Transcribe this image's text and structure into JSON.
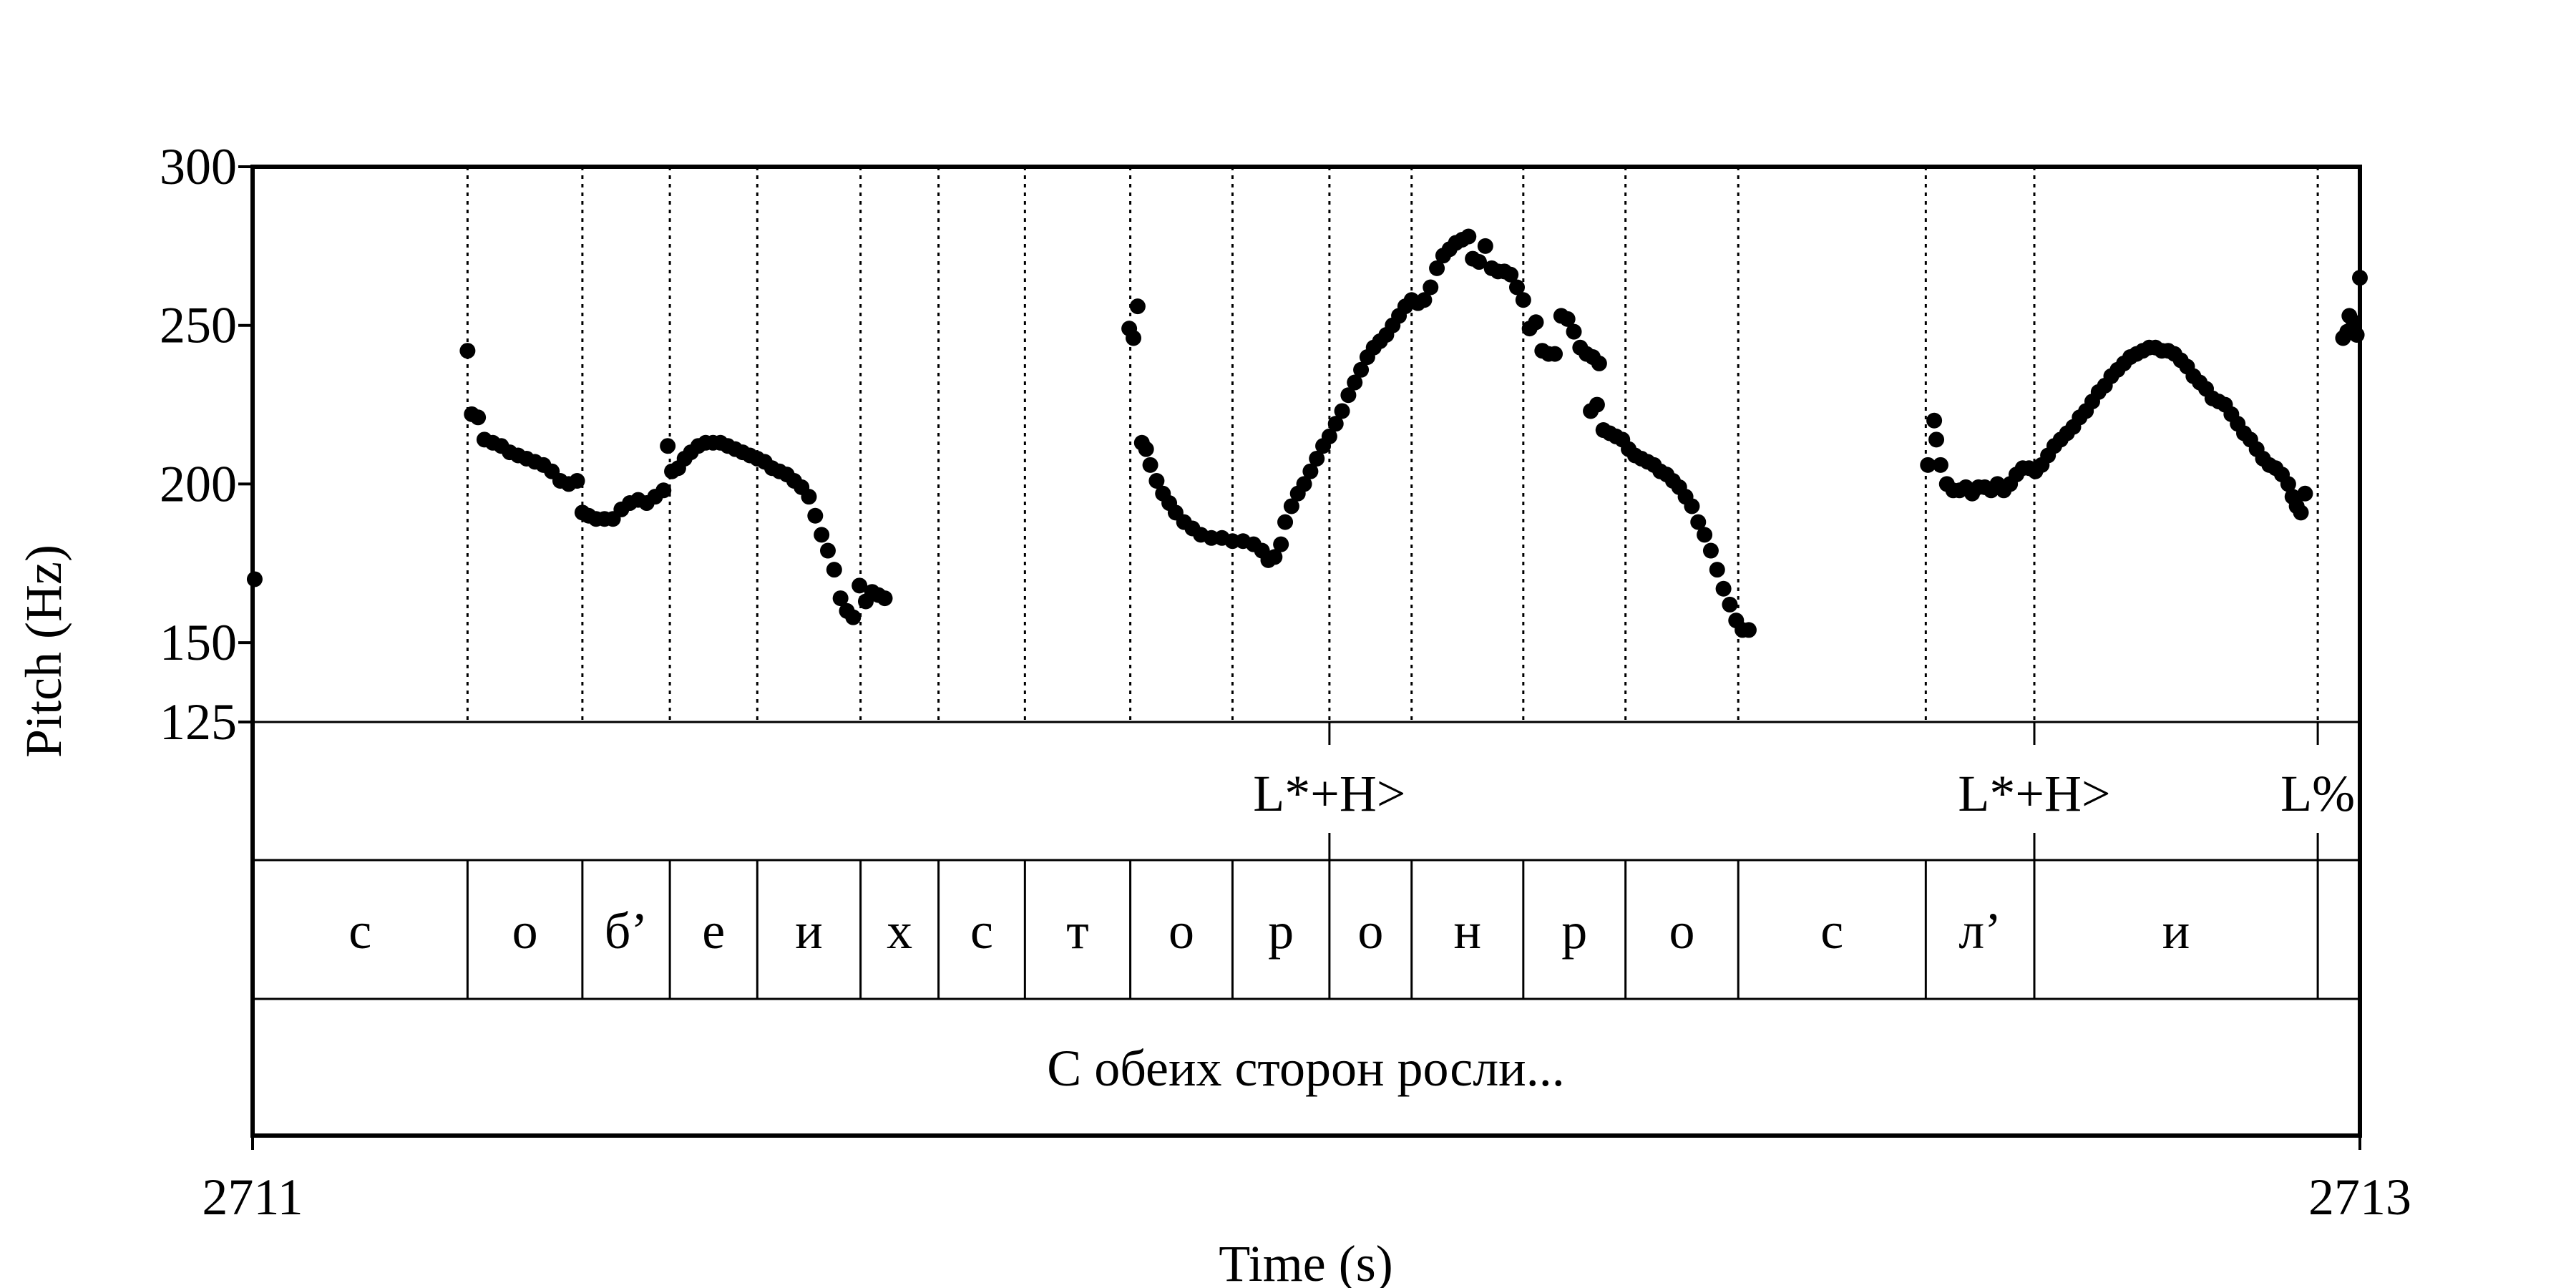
{
  "chart_data": {
    "type": "scatter",
    "xlabel": "Time (s)",
    "ylabel": "Pitch (Hz)",
    "xlim": [
      2711,
      2713
    ],
    "ylim": [
      125,
      300
    ],
    "x_ticks": [
      "2711",
      "2713"
    ],
    "y_ticks": [
      {
        "value": 300,
        "label": "300"
      },
      {
        "value": 250,
        "label": "250"
      },
      {
        "value": 200,
        "label": "200"
      },
      {
        "value": 150,
        "label": "150"
      },
      {
        "value": 125,
        "label": "125"
      }
    ],
    "point_color": "#000000",
    "boundaries": [
      2711.204,
      2711.313,
      2711.396,
      2711.479,
      2711.577,
      2711.651,
      2711.733,
      2711.833,
      2711.93,
      2712.022,
      2712.1,
      2712.206,
      2712.303,
      2712.41,
      2712.588,
      2712.691,
      2712.96
    ],
    "tone_tier": [
      {
        "t": 2712.022,
        "label": "L*+H>"
      },
      {
        "t": 2712.691,
        "label": "L*+H>"
      },
      {
        "t": 2712.96,
        "label": "L%"
      }
    ],
    "segments": [
      "с",
      "о",
      "б’",
      "е",
      "и",
      "х",
      "с",
      "т",
      "о",
      "р",
      "о",
      "н",
      "р",
      "о",
      "с",
      "л’",
      "и",
      ""
    ],
    "sentence": "С обеих сторон росли...",
    "pitch": [
      [
        2711.002,
        170
      ],
      [
        2711.204,
        242
      ],
      [
        2711.208,
        222
      ],
      [
        2711.214,
        221
      ],
      [
        2711.22,
        214
      ],
      [
        2711.228,
        213
      ],
      [
        2711.236,
        212
      ],
      [
        2711.244,
        210
      ],
      [
        2711.252,
        209
      ],
      [
        2711.26,
        208
      ],
      [
        2711.268,
        207
      ],
      [
        2711.276,
        206
      ],
      [
        2711.284,
        204
      ],
      [
        2711.292,
        201
      ],
      [
        2711.3,
        200
      ],
      [
        2711.308,
        201
      ],
      [
        2711.313,
        191
      ],
      [
        2711.319,
        190
      ],
      [
        2711.326,
        189
      ],
      [
        2711.334,
        189
      ],
      [
        2711.342,
        189
      ],
      [
        2711.35,
        192
      ],
      [
        2711.358,
        194
      ],
      [
        2711.366,
        195
      ],
      [
        2711.374,
        194
      ],
      [
        2711.382,
        196
      ],
      [
        2711.39,
        198
      ],
      [
        2711.394,
        212
      ],
      [
        2711.398,
        204
      ],
      [
        2711.404,
        205
      ],
      [
        2711.41,
        208
      ],
      [
        2711.416,
        210
      ],
      [
        2711.423,
        212
      ],
      [
        2711.43,
        213
      ],
      [
        2711.437,
        213
      ],
      [
        2711.444,
        213
      ],
      [
        2711.451,
        212
      ],
      [
        2711.458,
        211
      ],
      [
        2711.465,
        210
      ],
      [
        2711.472,
        209
      ],
      [
        2711.479,
        208
      ],
      [
        2711.486,
        207
      ],
      [
        2711.493,
        205
      ],
      [
        2711.5,
        204
      ],
      [
        2711.507,
        203
      ],
      [
        2711.514,
        201
      ],
      [
        2711.521,
        199
      ],
      [
        2711.528,
        196
      ],
      [
        2711.534,
        190
      ],
      [
        2711.54,
        184
      ],
      [
        2711.546,
        179
      ],
      [
        2711.552,
        173
      ],
      [
        2711.558,
        164
      ],
      [
        2711.564,
        160
      ],
      [
        2711.57,
        158
      ],
      [
        2711.576,
        168
      ],
      [
        2711.582,
        163
      ],
      [
        2711.588,
        166
      ],
      [
        2711.594,
        165
      ],
      [
        2711.6,
        164
      ],
      [
        2711.832,
        249
      ],
      [
        2711.836,
        246
      ],
      [
        2711.84,
        256
      ],
      [
        2711.844,
        213
      ],
      [
        2711.848,
        211
      ],
      [
        2711.852,
        206
      ],
      [
        2711.858,
        201
      ],
      [
        2711.864,
        197
      ],
      [
        2711.87,
        194
      ],
      [
        2711.876,
        191
      ],
      [
        2711.884,
        188
      ],
      [
        2711.892,
        186
      ],
      [
        2711.9,
        184
      ],
      [
        2711.91,
        183
      ],
      [
        2711.92,
        183
      ],
      [
        2711.93,
        182
      ],
      [
        2711.94,
        182
      ],
      [
        2711.95,
        181
      ],
      [
        2711.958,
        179
      ],
      [
        2711.964,
        176
      ],
      [
        2711.97,
        177
      ],
      [
        2711.976,
        181
      ],
      [
        2711.98,
        188
      ],
      [
        2711.986,
        193
      ],
      [
        2711.992,
        197
      ],
      [
        2711.998,
        200
      ],
      [
        2712.004,
        204
      ],
      [
        2712.01,
        208
      ],
      [
        2712.016,
        212
      ],
      [
        2712.022,
        215
      ],
      [
        2712.028,
        219
      ],
      [
        2712.034,
        223
      ],
      [
        2712.04,
        228
      ],
      [
        2712.046,
        232
      ],
      [
        2712.052,
        236
      ],
      [
        2712.058,
        240
      ],
      [
        2712.064,
        243
      ],
      [
        2712.07,
        245
      ],
      [
        2712.076,
        247
      ],
      [
        2712.082,
        250
      ],
      [
        2712.088,
        253
      ],
      [
        2712.094,
        256
      ],
      [
        2712.1,
        258
      ],
      [
        2712.106,
        257
      ],
      [
        2712.112,
        258
      ],
      [
        2712.118,
        262
      ],
      [
        2712.124,
        268
      ],
      [
        2712.13,
        272
      ],
      [
        2712.136,
        274
      ],
      [
        2712.142,
        276
      ],
      [
        2712.148,
        277
      ],
      [
        2712.154,
        278
      ],
      [
        2712.158,
        271
      ],
      [
        2712.164,
        270
      ],
      [
        2712.17,
        275
      ],
      [
        2712.176,
        268
      ],
      [
        2712.182,
        267
      ],
      [
        2712.188,
        267
      ],
      [
        2712.194,
        266
      ],
      [
        2712.2,
        262
      ],
      [
        2712.206,
        258
      ],
      [
        2712.212,
        249
      ],
      [
        2712.218,
        251
      ],
      [
        2712.224,
        242
      ],
      [
        2712.23,
        241
      ],
      [
        2712.236,
        241
      ],
      [
        2712.242,
        253
      ],
      [
        2712.248,
        252
      ],
      [
        2712.254,
        248
      ],
      [
        2712.26,
        243
      ],
      [
        2712.266,
        241
      ],
      [
        2712.272,
        240
      ],
      [
        2712.278,
        238
      ],
      [
        2712.27,
        223
      ],
      [
        2712.276,
        225
      ],
      [
        2712.282,
        217
      ],
      [
        2712.288,
        216
      ],
      [
        2712.294,
        215
      ],
      [
        2712.3,
        214
      ],
      [
        2712.306,
        211
      ],
      [
        2712.312,
        209
      ],
      [
        2712.318,
        208
      ],
      [
        2712.324,
        207
      ],
      [
        2712.33,
        206
      ],
      [
        2712.336,
        204
      ],
      [
        2712.342,
        203
      ],
      [
        2712.348,
        201
      ],
      [
        2712.354,
        199
      ],
      [
        2712.36,
        196
      ],
      [
        2712.366,
        193
      ],
      [
        2712.372,
        188
      ],
      [
        2712.378,
        184
      ],
      [
        2712.384,
        179
      ],
      [
        2712.39,
        173
      ],
      [
        2712.396,
        167
      ],
      [
        2712.402,
        162
      ],
      [
        2712.408,
        157
      ],
      [
        2712.414,
        154
      ],
      [
        2712.42,
        154
      ],
      [
        2712.59,
        206
      ],
      [
        2712.596,
        220
      ],
      [
        2712.598,
        214
      ],
      [
        2712.602,
        206
      ],
      [
        2712.608,
        200
      ],
      [
        2712.614,
        198
      ],
      [
        2712.62,
        198
      ],
      [
        2712.626,
        199
      ],
      [
        2712.632,
        197
      ],
      [
        2712.638,
        199
      ],
      [
        2712.644,
        199
      ],
      [
        2712.65,
        198
      ],
      [
        2712.656,
        200
      ],
      [
        2712.662,
        198
      ],
      [
        2712.668,
        200
      ],
      [
        2712.674,
        203
      ],
      [
        2712.68,
        205
      ],
      [
        2712.686,
        205
      ],
      [
        2712.692,
        204
      ],
      [
        2712.698,
        206
      ],
      [
        2712.704,
        209
      ],
      [
        2712.71,
        212
      ],
      [
        2712.716,
        214
      ],
      [
        2712.722,
        216
      ],
      [
        2712.728,
        218
      ],
      [
        2712.734,
        221
      ],
      [
        2712.74,
        223
      ],
      [
        2712.746,
        226
      ],
      [
        2712.752,
        229
      ],
      [
        2712.758,
        231
      ],
      [
        2712.764,
        234
      ],
      [
        2712.77,
        236
      ],
      [
        2712.776,
        238
      ],
      [
        2712.782,
        240
      ],
      [
        2712.788,
        241
      ],
      [
        2712.794,
        242
      ],
      [
        2712.8,
        243
      ],
      [
        2712.806,
        243
      ],
      [
        2712.812,
        242
      ],
      [
        2712.818,
        242
      ],
      [
        2712.824,
        241
      ],
      [
        2712.83,
        239
      ],
      [
        2712.836,
        237
      ],
      [
        2712.842,
        234
      ],
      [
        2712.848,
        232
      ],
      [
        2712.854,
        230
      ],
      [
        2712.86,
        227
      ],
      [
        2712.866,
        226
      ],
      [
        2712.872,
        225
      ],
      [
        2712.878,
        222
      ],
      [
        2712.884,
        219
      ],
      [
        2712.89,
        216
      ],
      [
        2712.896,
        214
      ],
      [
        2712.902,
        211
      ],
      [
        2712.908,
        208
      ],
      [
        2712.914,
        206
      ],
      [
        2712.92,
        205
      ],
      [
        2712.926,
        203
      ],
      [
        2712.932,
        200
      ],
      [
        2712.936,
        196
      ],
      [
        2712.94,
        193
      ],
      [
        2712.944,
        191
      ],
      [
        2712.948,
        197
      ],
      [
        2712.984,
        246
      ],
      [
        2712.988,
        248
      ],
      [
        2712.99,
        253
      ],
      [
        2712.994,
        251
      ],
      [
        2712.997,
        247
      ],
      [
        2713.0,
        265
      ]
    ]
  }
}
